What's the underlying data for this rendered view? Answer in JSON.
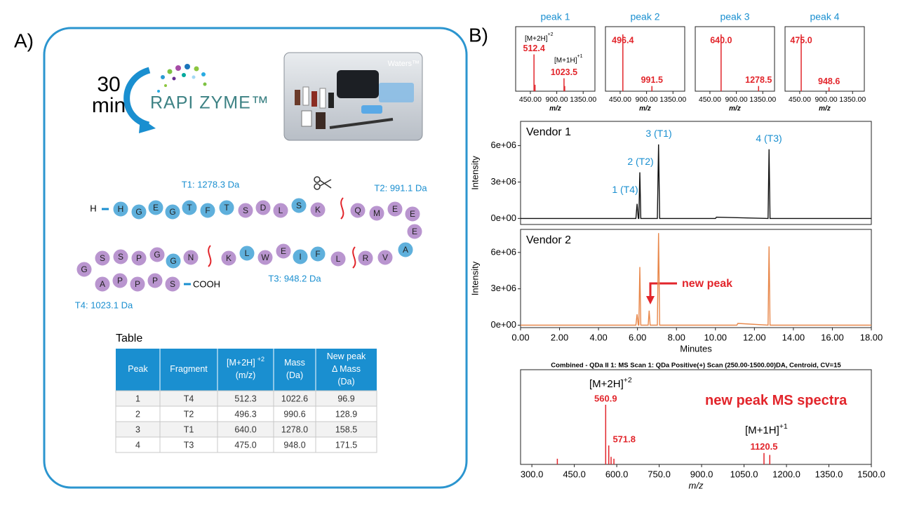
{
  "panel_a": {
    "label": "A)",
    "time": [
      "30",
      "min"
    ],
    "logo": "RAPI ZYME™",
    "brand": "Waters™",
    "nterm": "H",
    "cterm": "COOH",
    "residues": [
      {
        "letter": "H",
        "color": "#5fb0dc"
      },
      {
        "letter": "G",
        "color": "#5fb0dc"
      },
      {
        "letter": "E",
        "color": "#5fb0dc"
      },
      {
        "letter": "G",
        "color": "#5fb0dc"
      },
      {
        "letter": "T",
        "color": "#5fb0dc"
      },
      {
        "letter": "F",
        "color": "#5fb0dc"
      },
      {
        "letter": "T",
        "color": "#5fb0dc"
      },
      {
        "letter": "S",
        "color": "#b995cf"
      },
      {
        "letter": "D",
        "color": "#b995cf"
      },
      {
        "letter": "L",
        "color": "#b995cf"
      },
      {
        "letter": "S",
        "color": "#5fb0dc"
      },
      {
        "letter": "K",
        "color": "#b995cf"
      },
      {
        "letter": "Q",
        "color": "#b995cf"
      },
      {
        "letter": "M",
        "color": "#b995cf"
      },
      {
        "letter": "E",
        "color": "#b995cf"
      },
      {
        "letter": "E",
        "color": "#b995cf"
      },
      {
        "letter": "E",
        "color": "#b995cf"
      },
      {
        "letter": "A",
        "color": "#5fb0dc"
      },
      {
        "letter": "V",
        "color": "#b995cf"
      },
      {
        "letter": "R",
        "color": "#b995cf"
      },
      {
        "letter": "L",
        "color": "#b995cf"
      },
      {
        "letter": "F",
        "color": "#5fb0dc"
      },
      {
        "letter": "I",
        "color": "#5fb0dc"
      },
      {
        "letter": "E",
        "color": "#b995cf"
      },
      {
        "letter": "W",
        "color": "#b995cf"
      },
      {
        "letter": "L",
        "color": "#5fb0dc"
      },
      {
        "letter": "K",
        "color": "#b995cf"
      },
      {
        "letter": "N",
        "color": "#b995cf"
      },
      {
        "letter": "G",
        "color": "#5fb0dc"
      },
      {
        "letter": "G",
        "color": "#b995cf"
      },
      {
        "letter": "P",
        "color": "#b995cf"
      },
      {
        "letter": "S",
        "color": "#b995cf"
      },
      {
        "letter": "S",
        "color": "#b995cf"
      },
      {
        "letter": "G",
        "color": "#b995cf"
      },
      {
        "letter": "A",
        "color": "#b995cf"
      },
      {
        "letter": "P",
        "color": "#b995cf"
      },
      {
        "letter": "P",
        "color": "#b995cf"
      },
      {
        "letter": "P",
        "color": "#b995cf"
      },
      {
        "letter": "S",
        "color": "#b995cf"
      }
    ],
    "fragments": [
      "T1: 1278.3 Da",
      "T2: 991.1 Da",
      "T3: 948.2 Da",
      "T4: 1023.1 Da"
    ],
    "table": {
      "caption": "Table",
      "columns": [
        {
          "lines": [
            "Peak"
          ]
        },
        {
          "lines": [
            "Fragment"
          ]
        },
        {
          "lines": [
            "[M+2H]",
            "(m/z)"
          ],
          "sup": "+2"
        },
        {
          "lines": [
            "Mass",
            "(Da)"
          ]
        },
        {
          "lines": [
            "New peak",
            "Δ Mass",
            "(Da)"
          ]
        }
      ],
      "rows": [
        [
          "1",
          "T4",
          "512.3",
          "1022.6",
          "96.9"
        ],
        [
          "2",
          "T2",
          "496.3",
          "990.6",
          "128.9"
        ],
        [
          "3",
          "T1",
          "640.0",
          "1278.0",
          "158.5"
        ],
        [
          "4",
          "T3",
          "475.0",
          "948.0",
          "171.5"
        ]
      ]
    }
  },
  "panel_b": {
    "label": "B)"
  },
  "chart_data": [
    {
      "type": "bar",
      "title": "peak 1",
      "xlabel": "m/z",
      "color": "#e2252b",
      "xlim": [
        200,
        1550
      ],
      "ylim": [
        0,
        100
      ],
      "xticks": [
        {
          "value": 450,
          "label": "450.00"
        },
        {
          "value": 900,
          "label": "900.00"
        },
        {
          "value": 1350,
          "label": "1350.00"
        }
      ],
      "x": [
        512.4,
        530,
        1023.5,
        1035
      ],
      "values": [
        57,
        10,
        20,
        8
      ],
      "x_labels": [
        "512.4",
        null,
        "1023.5",
        null
      ],
      "annotations": [
        {
          "text": "[M+2H]",
          "sup": "+2"
        },
        {
          "text": "[M+1H]",
          "sup": "+1"
        }
      ]
    },
    {
      "type": "bar",
      "title": "peak 2",
      "xlabel": "m/z",
      "color": "#e2252b",
      "xlim": [
        200,
        1550
      ],
      "ylim": [
        0,
        100
      ],
      "xticks": [
        {
          "value": 450,
          "label": "450.00"
        },
        {
          "value": 900,
          "label": "900.00"
        },
        {
          "value": 1350,
          "label": "1350.00"
        }
      ],
      "x": [
        496.4,
        991.5
      ],
      "values": [
        88,
        8
      ],
      "x_labels": [
        "496.4",
        "991.5"
      ]
    },
    {
      "type": "bar",
      "title": "peak 3",
      "xlabel": "m/z",
      "color": "#e2252b",
      "xlim": [
        200,
        1550
      ],
      "ylim": [
        0,
        100
      ],
      "xticks": [
        {
          "value": 450,
          "label": "450.00"
        },
        {
          "value": 900,
          "label": "900.00"
        },
        {
          "value": 1350,
          "label": "1350.00"
        }
      ],
      "x": [
        640.0,
        1278.5
      ],
      "values": [
        88,
        8
      ],
      "x_labels": [
        "640.0",
        "1278.5"
      ]
    },
    {
      "type": "bar",
      "title": "peak 4",
      "xlabel": "m/z",
      "color": "#e2252b",
      "xlim": [
        200,
        1550
      ],
      "ylim": [
        0,
        100
      ],
      "xticks": [
        {
          "value": 450,
          "label": "450.00"
        },
        {
          "value": 900,
          "label": "900.00"
        },
        {
          "value": 1350,
          "label": "1350.00"
        }
      ],
      "x": [
        475.0,
        948.6
      ],
      "values": [
        88,
        6
      ],
      "x_labels": [
        "475.0",
        "948.6"
      ]
    },
    {
      "type": "line",
      "title": "Vendor 1",
      "ylabel": "Intensity",
      "color": "#111111",
      "xlim": [
        0,
        18
      ],
      "ylim": [
        -500000,
        8000000
      ],
      "yticks": [
        {
          "value": 0,
          "label": "0e+00"
        },
        {
          "value": 3000000,
          "label": "3e+06"
        },
        {
          "value": 6000000,
          "label": "6e+06"
        }
      ],
      "x": [
        0,
        5.92,
        5.98,
        6.04,
        6.07,
        6.12,
        6.17,
        7.02,
        7.08,
        7.14,
        10,
        10.05,
        12.7,
        12.75,
        12.8,
        18
      ],
      "values": [
        0,
        0,
        1200000,
        0,
        0,
        3800000,
        0,
        0,
        6100000,
        0,
        0,
        100000,
        0,
        5700000,
        0,
        0
      ],
      "annotations": [
        {
          "text": "1 (T4)"
        },
        {
          "text": "2 (T2)"
        },
        {
          "text": "3 (T1)"
        },
        {
          "text": "4 (T3)"
        }
      ]
    },
    {
      "type": "line",
      "title": "Vendor 2",
      "ylabel": "Intensity",
      "xlabel": "Minutes",
      "color": "#e8874a",
      "xlim": [
        0,
        18
      ],
      "ylim": [
        -200000,
        7900000
      ],
      "xticks": [
        {
          "value": 0,
          "label": "0.00"
        },
        {
          "value": 2,
          "label": "2.00"
        },
        {
          "value": 4,
          "label": "4.00"
        },
        {
          "value": 6,
          "label": "6.00"
        },
        {
          "value": 8,
          "label": "8.00"
        },
        {
          "value": 10,
          "label": "10.00"
        },
        {
          "value": 12,
          "label": "12.00"
        },
        {
          "value": 14,
          "label": "14.00"
        },
        {
          "value": 16,
          "label": "16.00"
        },
        {
          "value": 18,
          "label": "18.00"
        }
      ],
      "yticks": [
        {
          "value": 0,
          "label": "0e+00"
        },
        {
          "value": 3000000,
          "label": "3e+06"
        },
        {
          "value": 6000000,
          "label": "6e+06"
        }
      ],
      "x": [
        0,
        5.92,
        5.98,
        6.04,
        6.07,
        6.12,
        6.17,
        6.55,
        6.6,
        6.65,
        7.02,
        7.08,
        7.14,
        11.1,
        11.15,
        12.7,
        12.75,
        12.8,
        18
      ],
      "values": [
        0,
        0,
        900000,
        0,
        0,
        4800000,
        0,
        0,
        1200000,
        0,
        0,
        7600000,
        0,
        0,
        150000,
        0,
        6500000,
        0,
        0
      ],
      "annotations": [
        {
          "text": "new peak"
        }
      ]
    },
    {
      "type": "bar",
      "title": "Combined - QDa II 1: MS Scan 1: QDa Positive(+) Scan (250.00-1500.00)DA, Centroid, CV=15",
      "xlabel": "m/z",
      "color": "#e2252b",
      "xlim": [
        260,
        1500
      ],
      "ylim": [
        0,
        100
      ],
      "xticks": [
        {
          "value": 300,
          "label": "300.0"
        },
        {
          "value": 450,
          "label": "450.0"
        },
        {
          "value": 600,
          "label": "600.0"
        },
        {
          "value": 750,
          "label": "750.0"
        },
        {
          "value": 900,
          "label": "900.0"
        },
        {
          "value": 1050,
          "label": "1050.0"
        },
        {
          "value": 1200,
          "label": "1200.0"
        },
        {
          "value": 1350,
          "label": "1350.0"
        },
        {
          "value": 1500,
          "label": "1500.0"
        }
      ],
      "x": [
        390,
        560.9,
        571.8,
        580,
        590,
        1120.5,
        1141
      ],
      "values": [
        6,
        63,
        20,
        8,
        6,
        12,
        10
      ],
      "x_labels": [
        null,
        "560.9",
        "571.8",
        null,
        null,
        "1120.5",
        null
      ],
      "annotations": [
        {
          "text": "[M+2H]",
          "sup": "+2"
        },
        {
          "text": "[M+1H]",
          "sup": "+1"
        },
        {
          "text": "new peak MS spectra"
        }
      ]
    }
  ]
}
